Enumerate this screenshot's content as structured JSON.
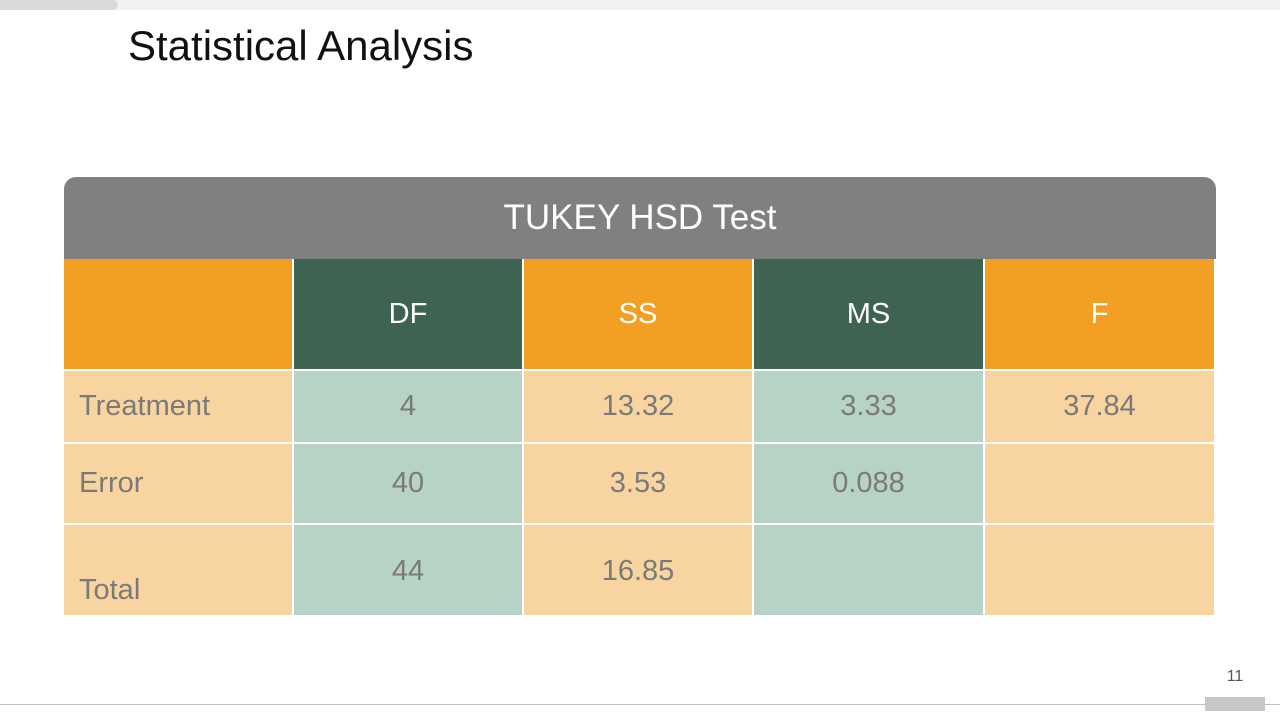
{
  "header": {
    "title": "Statistical Analysis"
  },
  "table": {
    "caption": "TUKEY HSD Test",
    "columns": [
      "DF",
      "SS",
      "MS",
      "F"
    ],
    "rows": [
      [
        "Treatment",
        "4",
        "13.32",
        "3.33",
        "37.84"
      ],
      [
        "Error",
        "40",
        "3.53",
        "0.088"
      ],
      [
        "Total",
        "44",
        "16.85"
      ]
    ]
  },
  "footer": {
    "page_number": "11"
  }
}
